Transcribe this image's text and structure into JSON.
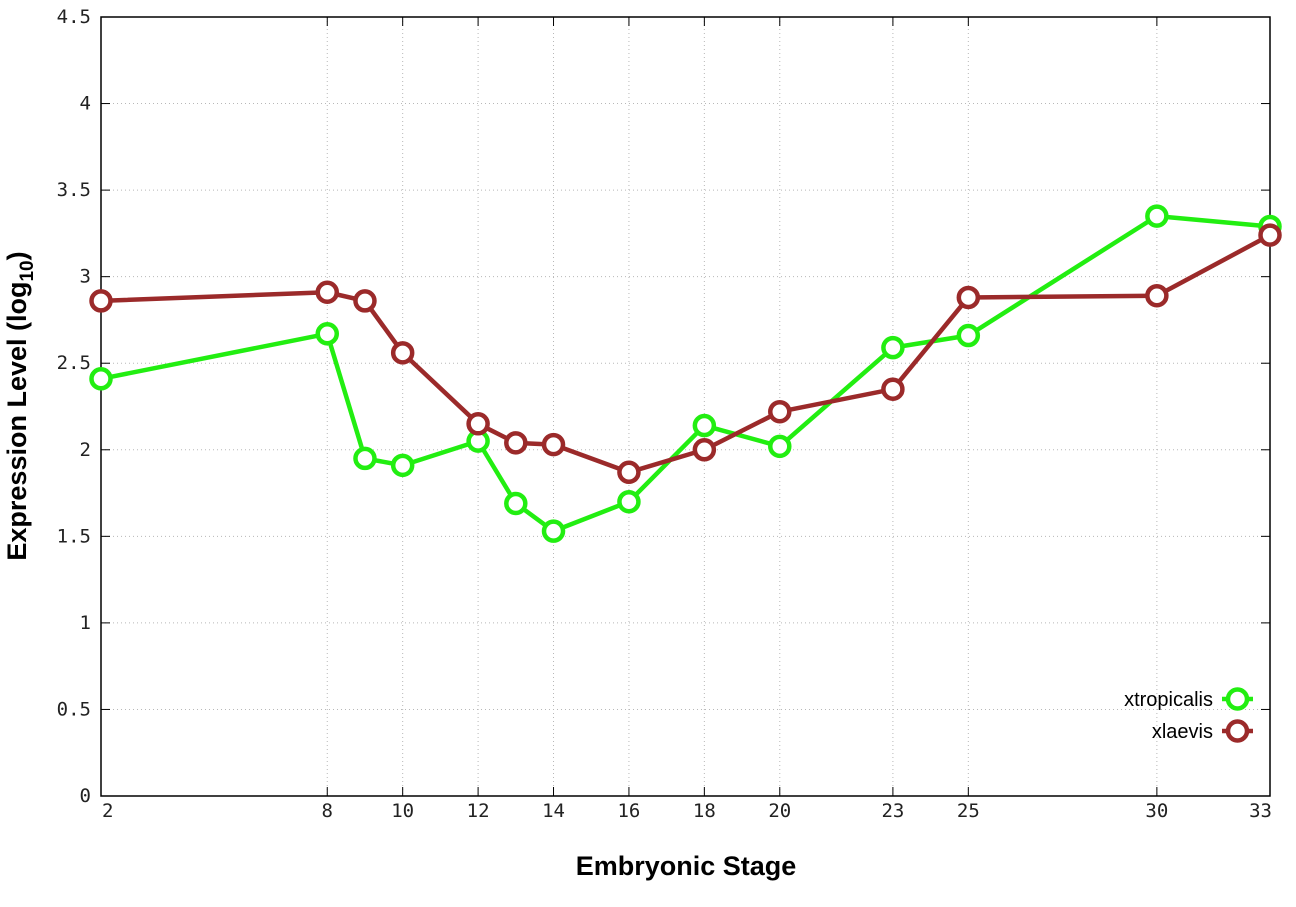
{
  "chart_data": {
    "type": "line",
    "title": "",
    "xlabel": "Embryonic Stage",
    "ylabel_main": "Expression Level (log",
    "ylabel_sub": "10",
    "ylabel_close": ")",
    "x_ticks": [
      2,
      8,
      10,
      12,
      14,
      16,
      18,
      20,
      23,
      25,
      30,
      33
    ],
    "y_ticks": [
      "0",
      "0.5",
      "1",
      "1.5",
      "2",
      "2.5",
      "3",
      "3.5",
      "4",
      "4.5"
    ],
    "y_tick_values": [
      0,
      0.5,
      1,
      1.5,
      2,
      2.5,
      3,
      3.5,
      4,
      4.5
    ],
    "xlim": [
      2,
      33
    ],
    "ylim": [
      0,
      4.5
    ],
    "grid": true,
    "legend_position": "bottom-right",
    "series": [
      {
        "name": "xtropicalis",
        "color": "#22ee11",
        "x": [
          2,
          8,
          9,
          10,
          12,
          13,
          14,
          16,
          18,
          20,
          23,
          25,
          30,
          33
        ],
        "y": [
          2.41,
          2.67,
          1.95,
          1.91,
          2.05,
          1.69,
          1.53,
          1.7,
          2.14,
          2.02,
          2.59,
          2.66,
          3.35,
          3.29
        ]
      },
      {
        "name": "xlaevis",
        "color": "#9b2a2a",
        "x": [
          2,
          8,
          9,
          10,
          12,
          13,
          14,
          16,
          18,
          20,
          23,
          25,
          30,
          33
        ],
        "y": [
          2.86,
          2.91,
          2.86,
          2.56,
          2.15,
          2.04,
          2.03,
          1.87,
          2.0,
          2.22,
          2.35,
          2.88,
          2.89,
          3.24
        ]
      }
    ]
  }
}
